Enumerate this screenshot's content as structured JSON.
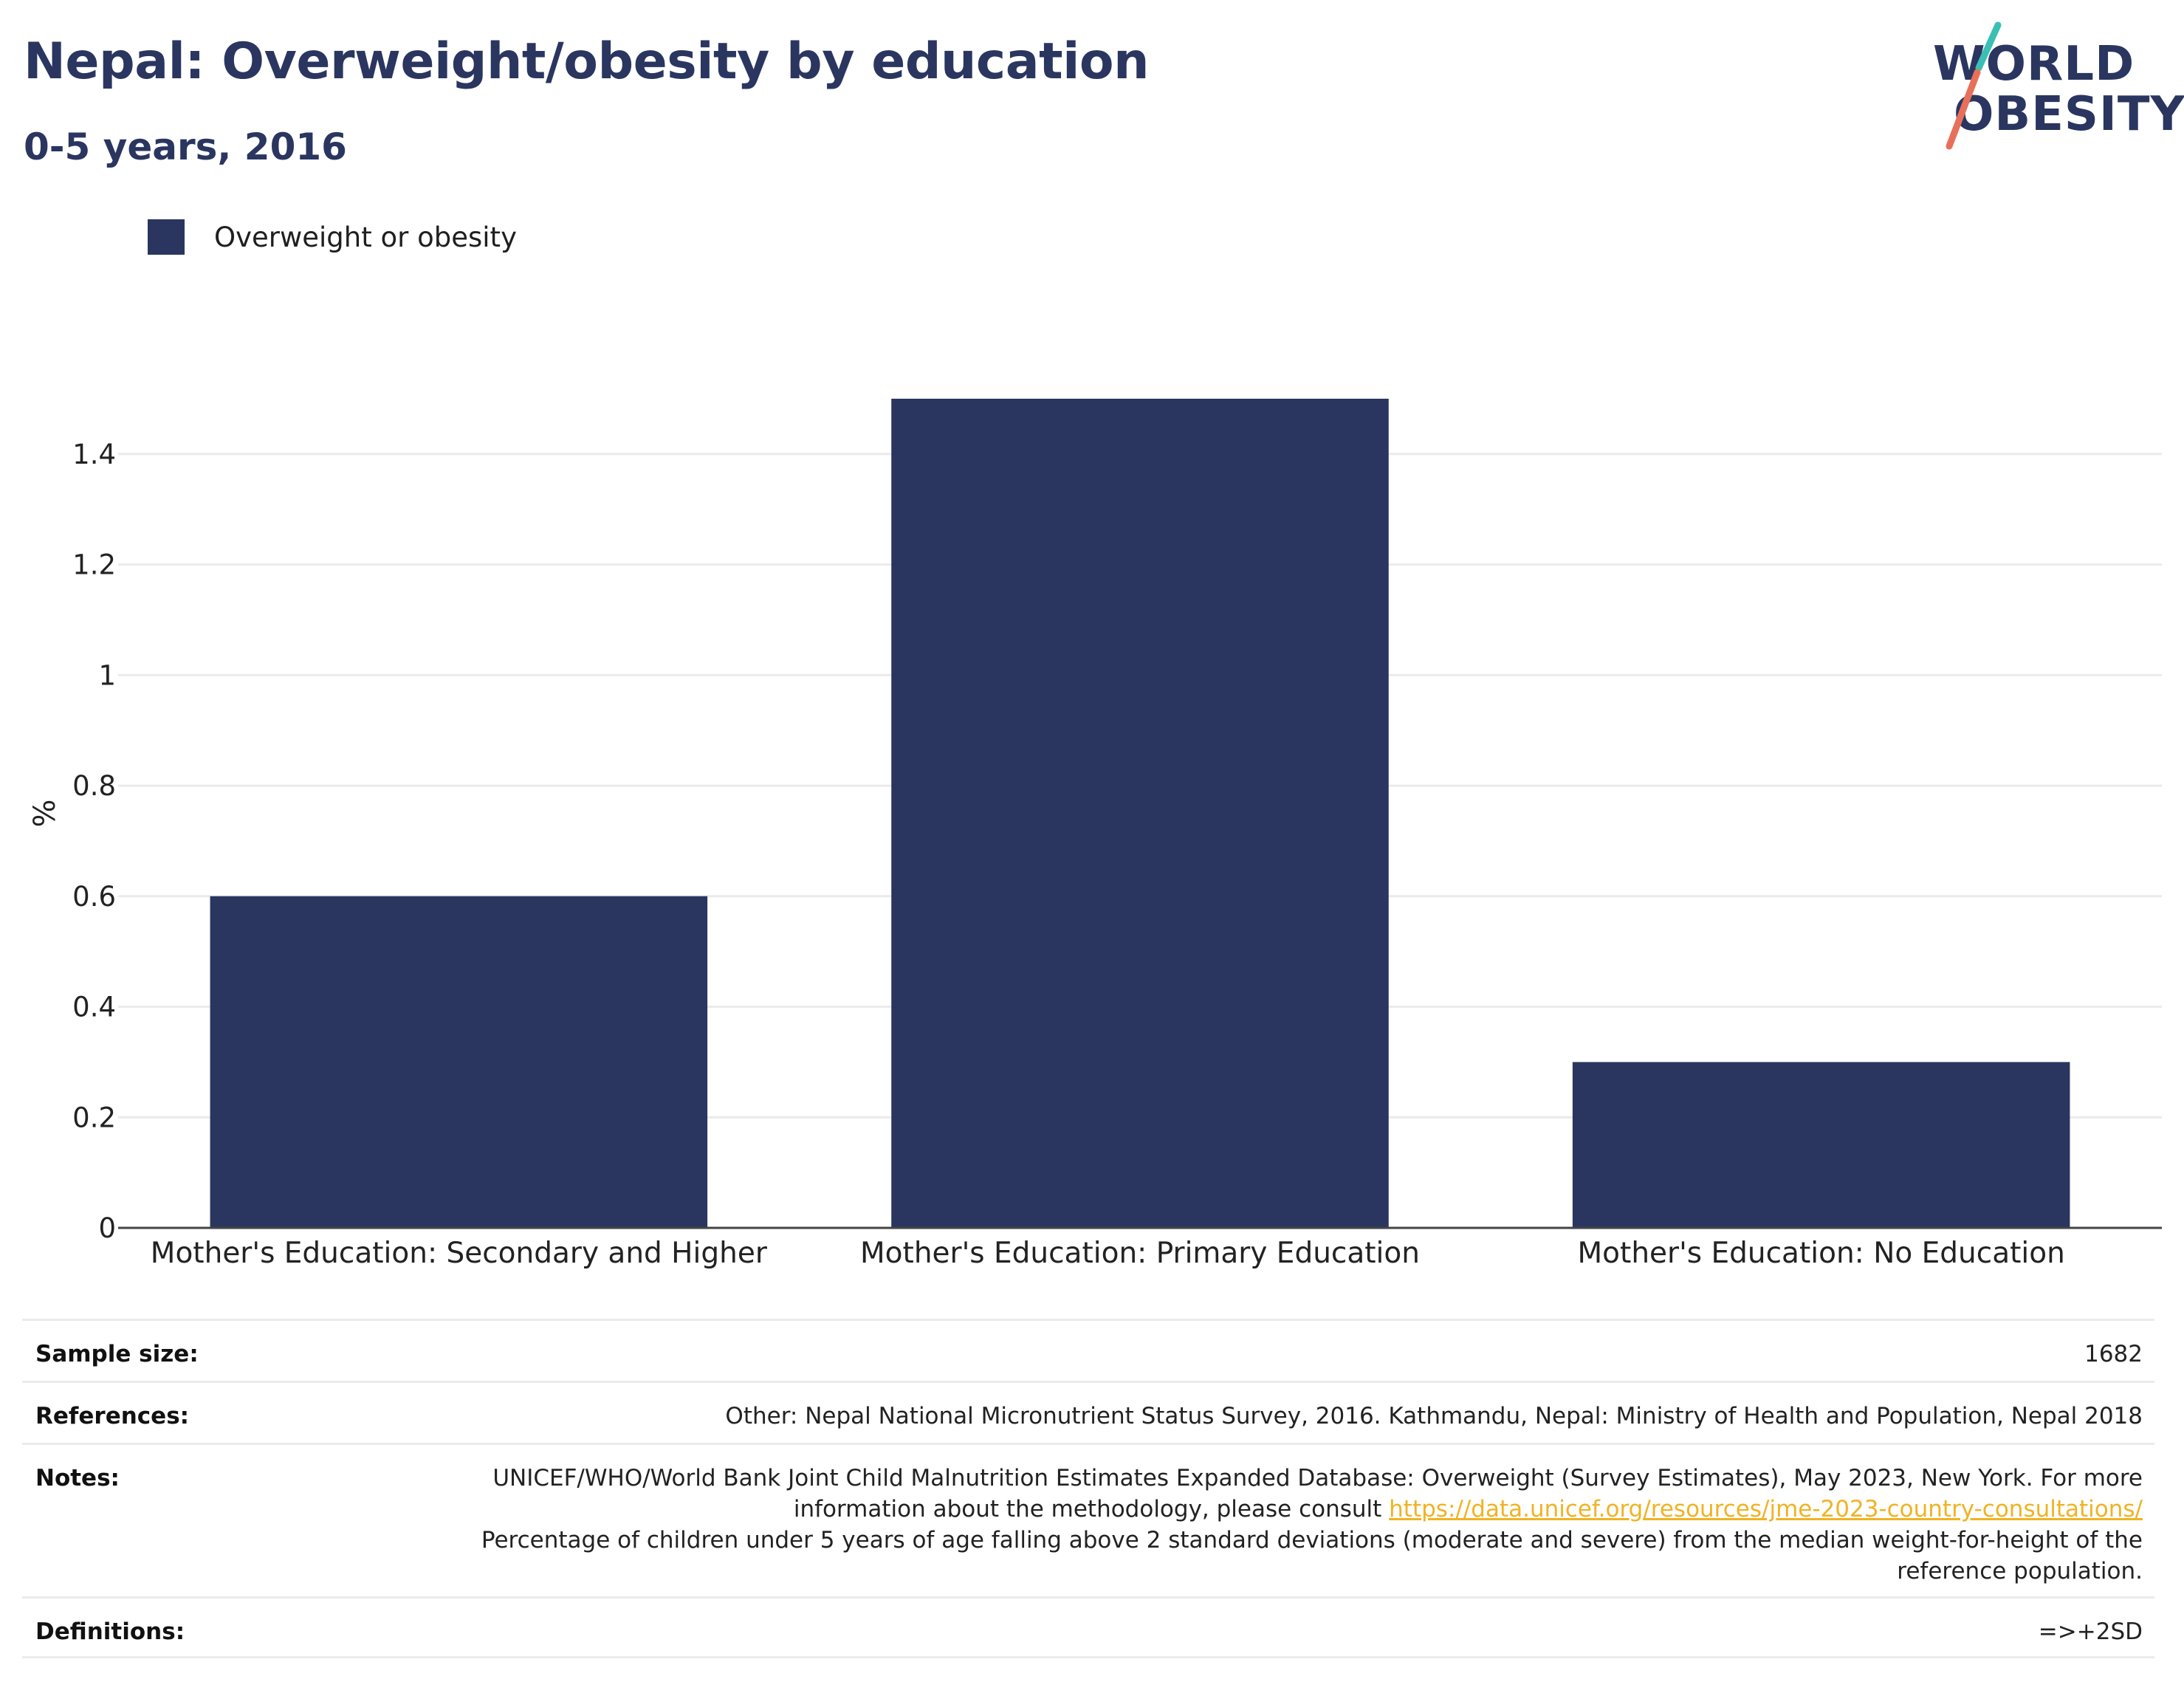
{
  "header": {
    "title": "Nepal: Overweight/obesity by education",
    "subtitle": "0-5 years, 2016"
  },
  "logo": {
    "line1": "WORLD",
    "line2": "OBESITY",
    "accent_teal": "#3bbfb4",
    "accent_coral": "#e8705a"
  },
  "colors": {
    "bar": "#2a3660",
    "title": "#2a3660",
    "grid": "#ebebeb",
    "axis": "#444444",
    "link": "#f0b323"
  },
  "legend": {
    "label": "Overweight or obesity"
  },
  "chart_data": {
    "type": "bar",
    "categories": [
      "Mother's Education: Secondary and Higher",
      "Mother's Education: Primary Education",
      "Mother's Education: No Education"
    ],
    "series": [
      {
        "name": "Overweight or obesity",
        "values": [
          0.6,
          1.5,
          0.3
        ]
      }
    ],
    "ylabel": "%",
    "xlabel": "",
    "ylim": [
      0,
      1.5
    ],
    "yticks": [
      0,
      0.2,
      0.4,
      0.6,
      0.8,
      1,
      1.2,
      1.4
    ],
    "ytick_labels": [
      "0",
      "0.2",
      "0.4",
      "0.6",
      "0.8",
      "1",
      "1.2",
      "1.4"
    ],
    "grid": true,
    "legend_position": "top-left"
  },
  "info": {
    "sample_size": {
      "label": "Sample size:",
      "value": "1682"
    },
    "references": {
      "label": "References:",
      "value": "Other: Nepal National Micronutrient Status Survey, 2016. Kathmandu, Nepal: Ministry of Health and Population, Nepal 2018"
    },
    "notes": {
      "label": "Notes:",
      "text_before_link": "UNICEF/WHO/World Bank Joint Child Malnutrition Estimates Expanded Database: Overweight (Survey Estimates), May 2023, New York. For more information about the methodology, please consult ",
      "link": "https://data.unicef.org/resources/jme-2023-country-consultations/",
      "text_after_link": "Percentage of children under 5 years of age falling above 2 standard deviations (moderate and severe) from the median weight-for-height of the reference population."
    },
    "definitions": {
      "label": "Definitions:",
      "value": "=>+2SD"
    }
  }
}
